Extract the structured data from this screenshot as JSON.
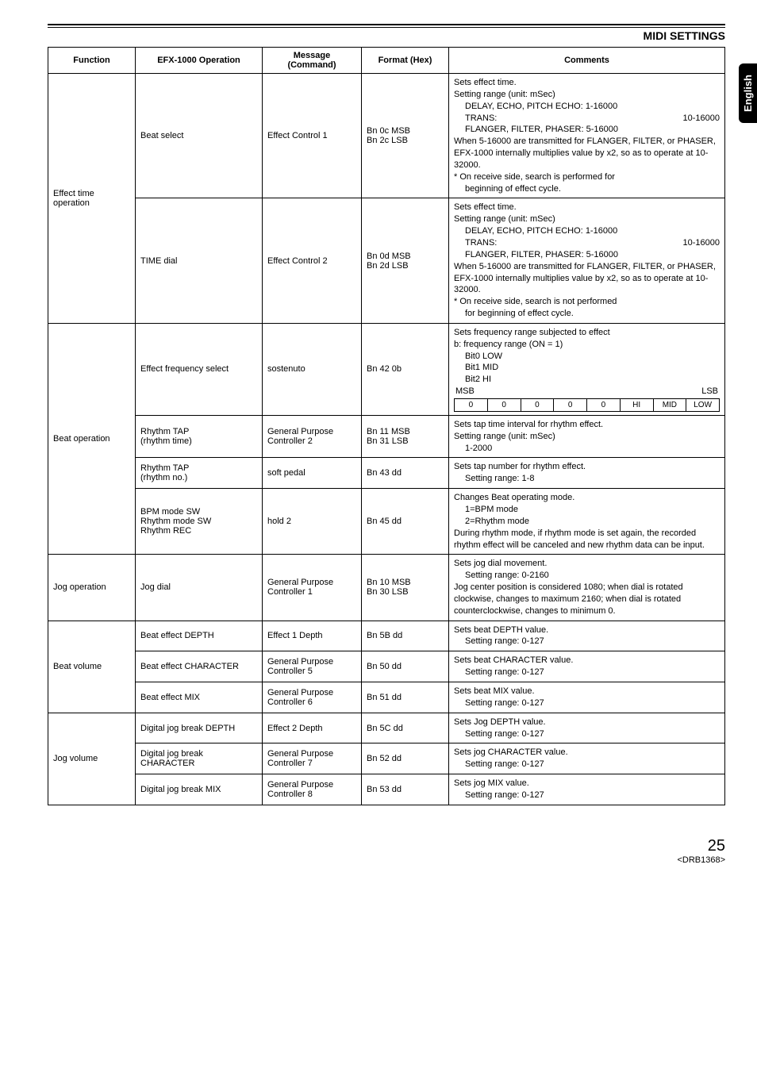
{
  "header": {
    "section_title": "MIDI SETTINGS",
    "side_tab": "English"
  },
  "table": {
    "headers": {
      "function": "Function",
      "operation": "EFX-1000 Operation",
      "message": "Message\n(Command)",
      "format": "Format (Hex)",
      "comments": "Comments"
    },
    "groups": [
      {
        "function": "Effect time operation",
        "rows": [
          {
            "operation": "Beat select",
            "message": "Effect Control 1",
            "format": "Bn 0c MSB\nBn 2c LSB",
            "comment": {
              "line1": "Sets effect time.",
              "line2": "Setting range (unit: mSec)",
              "sub1_left": "DELAY, ECHO, PITCH ECHO:",
              "sub1_right": "1-16000",
              "sub2_left": "TRANS:",
              "sub2_right": "10-16000",
              "sub3_left": "FLANGER, FILTER, PHASER:",
              "sub3_right": "5-16000",
              "line3": "When 5-16000 are transmitted for FLANGER, FILTER, or PHASER, EFX-1000 internally multiplies value by x2, so as to operate at 10-32000.",
              "line4": "* On receive side, search is performed for",
              "sub4": "beginning of effect cycle."
            }
          },
          {
            "operation": "TIME dial",
            "message": "Effect Control 2",
            "format": "Bn 0d MSB\nBn 2d LSB",
            "comment": {
              "line1": "Sets effect time.",
              "line2": "Setting range (unit: mSec)",
              "sub1_left": "DELAY, ECHO, PITCH ECHO:",
              "sub1_right": "1-16000",
              "sub2_left": "TRANS:",
              "sub2_right": "10-16000",
              "sub3_left": "FLANGER, FILTER, PHASER:",
              "sub3_right": "5-16000",
              "line3": "When 5-16000 are transmitted for FLANGER, FILTER, or PHASER, EFX-1000 internally multiplies value by x2, so as to operate at 10-32000.",
              "line4": "* On receive side, search is not performed",
              "sub4": "for beginning of effect cycle."
            }
          }
        ]
      },
      {
        "function": "Beat operation",
        "rows": [
          {
            "operation": "Effect frequency select",
            "message": "sostenuto",
            "format": "Bn 42 0b",
            "freq_comment": {
              "line1": "Sets frequency range subjected to effect",
              "line2": "b: frequency range (ON = 1)",
              "bits_labels": [
                "Bit0 LOW",
                "Bit1 MID",
                "Bit2 HI"
              ],
              "msb": "MSB",
              "lsb": "LSB",
              "cells": [
                "0",
                "0",
                "0",
                "0",
                "0",
                "HI",
                "MID",
                "LOW"
              ]
            }
          },
          {
            "operation": "Rhythm TAP\n(rhythm time)",
            "message": "General Purpose Controller 2",
            "format": "Bn 11 MSB\nBn 31 LSB",
            "simple": {
              "l1": "Sets tap time interval for rhythm effect.",
              "l2": "Setting range (unit: mSec)",
              "l3": "1-2000"
            }
          },
          {
            "operation": "Rhythm TAP\n(rhythm no.)",
            "message": "soft pedal",
            "format": "Bn 43 dd",
            "simple": {
              "l1": "Sets tap number for rhythm effect.",
              "l2": "Setting range: 1-8"
            }
          },
          {
            "operation": "BPM mode SW\nRhythm mode SW\nRhythm REC",
            "message": "hold 2",
            "format": "Bn 45 dd",
            "simple": {
              "l1": "Changes Beat operating mode.",
              "l2": "1=BPM mode",
              "l3": "2=Rhythm mode",
              "l4": "During rhythm mode, if rhythm mode is set again, the recorded rhythm effect will be canceled and new rhythm data can be input."
            }
          }
        ]
      },
      {
        "function": "Jog operation",
        "rows": [
          {
            "operation": "Jog dial",
            "message": "General Purpose Controller 1",
            "format": "Bn 10 MSB\nBn 30 LSB",
            "simple": {
              "l1": "Sets jog dial movement.",
              "l2": "Setting range: 0-2160",
              "l3": "Jog center position is considered 1080; when dial is rotated clockwise, changes to maximum 2160; when dial is rotated counterclockwise, changes to minimum 0."
            }
          }
        ]
      },
      {
        "function": "Beat volume",
        "rows": [
          {
            "operation": "Beat effect DEPTH",
            "message": "Effect 1 Depth",
            "format": "Bn 5B dd",
            "simple": {
              "l1": "Sets beat DEPTH value.",
              "l2": "Setting range: 0-127"
            }
          },
          {
            "operation": "Beat effect CHARACTER",
            "message": "General Purpose Controller 5",
            "format": "Bn 50 dd",
            "simple": {
              "l1": "Sets beat CHARACTER value.",
              "l2": "Setting range: 0-127"
            }
          },
          {
            "operation": "Beat effect MIX",
            "message": "General Purpose Controller 6",
            "format": "Bn 51 dd",
            "simple": {
              "l1": "Sets beat MIX value.",
              "l2": "Setting range: 0-127"
            }
          }
        ]
      },
      {
        "function": "Jog volume",
        "rows": [
          {
            "operation": "Digital jog break DEPTH",
            "message": "Effect 2 Depth",
            "format": "Bn 5C dd",
            "simple": {
              "l1": "Sets Jog DEPTH value.",
              "l2": "Setting range: 0-127"
            }
          },
          {
            "operation": "Digital jog break CHARACTER",
            "message": "General Purpose Controller 7",
            "format": "Bn 52 dd",
            "simple": {
              "l1": "Sets jog CHARACTER value.",
              "l2": "Setting range: 0-127"
            }
          },
          {
            "operation": "Digital jog break MIX",
            "message": "General Purpose Controller 8",
            "format": "Bn 53 dd",
            "simple": {
              "l1": "Sets jog MIX value.",
              "l2": "Setting range: 0-127"
            }
          }
        ]
      }
    ]
  },
  "footer": {
    "page": "25",
    "code": "<DRB1368>"
  }
}
